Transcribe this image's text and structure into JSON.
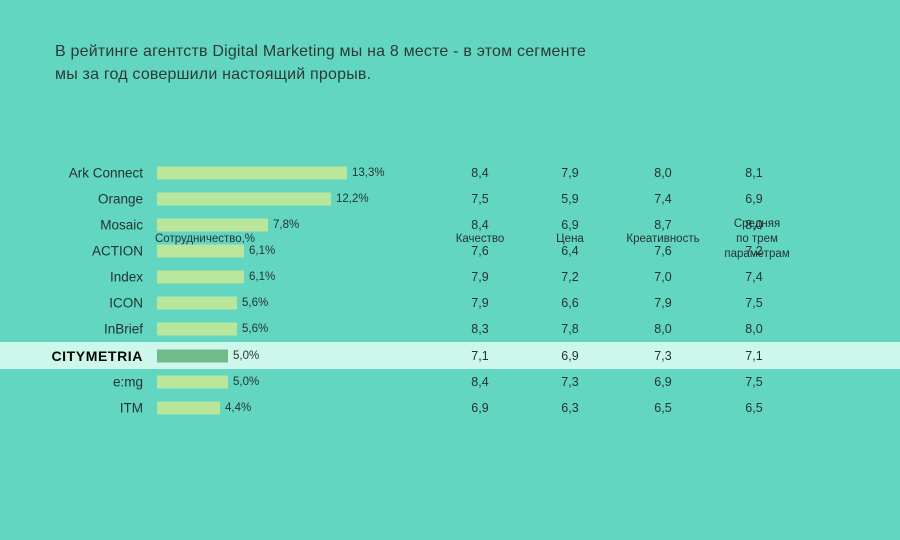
{
  "title": {
    "line1": "В рейтинге агентств Digital Marketing мы на 8 месте - в этом сегменте",
    "line2": "мы за год совершили настоящий прорыв."
  },
  "header": {
    "cooperation": "Сотрудничество,%",
    "quality": "Качество",
    "price": "Цена",
    "creativity": "Креативность",
    "average_line1": "Средняя",
    "average_line2": "по трем",
    "average_line3": "параметрам"
  },
  "colors": {
    "background": "#63d6c2",
    "bar_default": "#bae69c",
    "bar_highlight": "#71ba8b",
    "row_highlight_band": "#cef7eb",
    "text_dark": "#24332f"
  },
  "chart_data": {
    "type": "bar",
    "title": "В рейтинге агентств Digital Marketing мы на 8 месте - в этом сегменте мы за год совершили настоящий прорыв.",
    "orientation": "horizontal",
    "categories": [
      "Ark Connect",
      "Orange",
      "Mosaic",
      "ACTION",
      "Index",
      "ICON",
      "InBrief",
      "CITYMETRIA",
      "e:mg",
      "ITM"
    ],
    "highlighted_category": "CITYMETRIA",
    "series": [
      {
        "name": "Сотрудничество,%",
        "values": [
          13.3,
          12.2,
          7.8,
          6.1,
          6.1,
          5.6,
          5.6,
          5.0,
          5.0,
          4.4
        ]
      },
      {
        "name": "Качество",
        "values": [
          8.4,
          7.5,
          8.4,
          7.6,
          7.9,
          7.9,
          8.3,
          7.1,
          8.4,
          6.9
        ]
      },
      {
        "name": "Цена",
        "values": [
          7.9,
          5.9,
          6.9,
          6.4,
          7.2,
          6.6,
          7.8,
          6.9,
          7.3,
          6.3
        ]
      },
      {
        "name": "Креативность",
        "values": [
          8.0,
          7.4,
          8.7,
          7.6,
          7.0,
          7.9,
          8.0,
          7.3,
          6.9,
          6.5
        ]
      },
      {
        "name": "Средняя по трем параметрам",
        "values": [
          8.1,
          6.9,
          8.0,
          7.2,
          7.4,
          7.5,
          8.0,
          7.1,
          7.5,
          6.5
        ]
      }
    ]
  },
  "table": {
    "rows": [
      {
        "label": "Ark Connect",
        "pct": 13.3,
        "pct_label": "13,3%",
        "quality": "8,4",
        "price": "7,9",
        "creativity": "8,0",
        "average": "8,1",
        "highlight": false
      },
      {
        "label": "Orange",
        "pct": 12.2,
        "pct_label": "12,2%",
        "quality": "7,5",
        "price": "5,9",
        "creativity": "7,4",
        "average": "6,9",
        "highlight": false
      },
      {
        "label": "Mosaic",
        "pct": 7.8,
        "pct_label": "7,8%",
        "quality": "8,4",
        "price": "6,9",
        "creativity": "8,7",
        "average": "8,0",
        "highlight": false
      },
      {
        "label": "ACTION",
        "pct": 6.1,
        "pct_label": "6,1%",
        "quality": "7,6",
        "price": "6,4",
        "creativity": "7,6",
        "average": "7,2",
        "highlight": false
      },
      {
        "label": "Index",
        "pct": 6.1,
        "pct_label": "6,1%",
        "quality": "7,9",
        "price": "7,2",
        "creativity": "7,0",
        "average": "7,4",
        "highlight": false
      },
      {
        "label": "ICON",
        "pct": 5.6,
        "pct_label": "5,6%",
        "quality": "7,9",
        "price": "6,6",
        "creativity": "7,9",
        "average": "7,5",
        "highlight": false
      },
      {
        "label": "InBrief",
        "pct": 5.6,
        "pct_label": "5,6%",
        "quality": "8,3",
        "price": "7,8",
        "creativity": "8,0",
        "average": "8,0",
        "highlight": false
      },
      {
        "label": "CITYMETRIA",
        "pct": 5.0,
        "pct_label": "5,0%",
        "quality": "7,1",
        "price": "6,9",
        "creativity": "7,3",
        "average": "7,1",
        "highlight": true
      },
      {
        "label": "e:mg",
        "pct": 5.0,
        "pct_label": "5,0%",
        "quality": "8,4",
        "price": "7,3",
        "creativity": "6,9",
        "average": "7,5",
        "highlight": false
      },
      {
        "label": "ITM",
        "pct": 4.4,
        "pct_label": "4,4%",
        "quality": "6,9",
        "price": "6,3",
        "creativity": "6,5",
        "average": "6,5",
        "highlight": false
      }
    ]
  }
}
